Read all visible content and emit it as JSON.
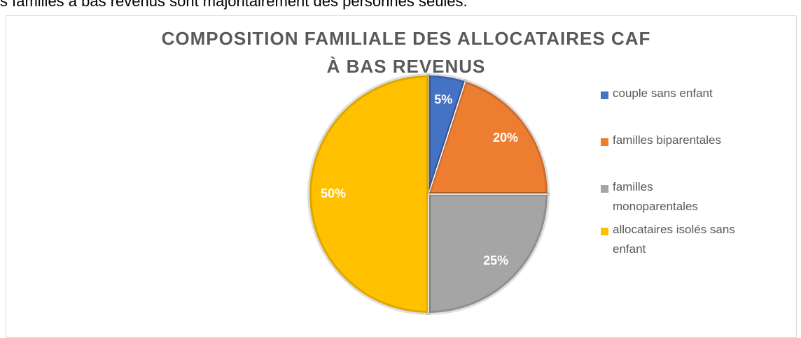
{
  "caption": "s familles à bas revenus sont majoritairement des personnes seules.",
  "chart_data": {
    "type": "pie",
    "title": [
      "COMPOSITION FAMILIALE DES ALLOCATAIRES CAF",
      "À BAS REVENUS"
    ],
    "categories": [
      "couple sans enfant",
      "familles biparentales",
      "familles monoparentales",
      "allocataires isolés sans enfant"
    ],
    "values": [
      5,
      20,
      25,
      50
    ],
    "value_labels": [
      "5%",
      "20%",
      "25%",
      "50%"
    ],
    "colors": [
      "#4472c4",
      "#ed7d31",
      "#a5a5a5",
      "#ffc000"
    ],
    "legend": "right"
  }
}
